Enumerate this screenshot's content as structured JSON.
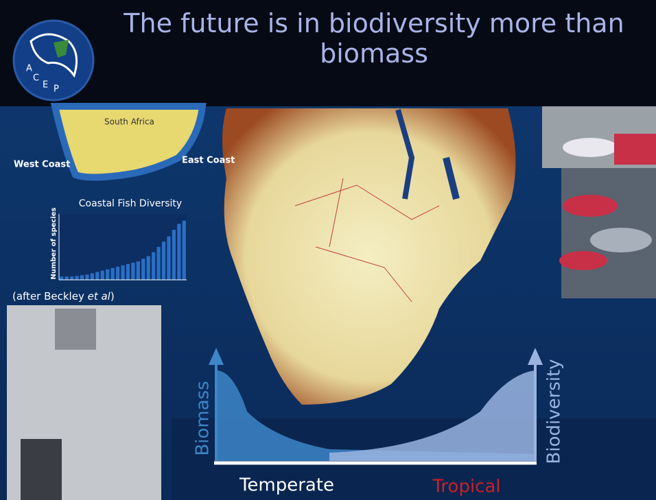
{
  "slide": {
    "title": "The future is in biodiversity more than biomass",
    "logo_letters": [
      "A",
      "C",
      "E",
      "P"
    ],
    "map_labels": {
      "west": "West Coast",
      "east": "East Coast",
      "country": "South Africa"
    },
    "citation": {
      "before": "(after Beckley ",
      "italic": "et al",
      "after": ")"
    },
    "diagram": {
      "left_axis": "Biomass",
      "right_axis": "Biodiversity",
      "left_zone": "Temperate",
      "right_zone": "Tropical"
    }
  },
  "chart_data": {
    "type": "bar",
    "title": "Coastal Fish Diversity",
    "ylabel": "Number of species",
    "values": [
      5,
      5,
      5,
      6,
      7,
      8,
      10,
      12,
      14,
      16,
      18,
      20,
      22,
      24,
      26,
      28,
      32,
      36,
      42,
      50,
      58,
      66,
      76,
      85,
      90
    ],
    "color": "#2a6fc4",
    "ylim": [
      0,
      100
    ]
  }
}
